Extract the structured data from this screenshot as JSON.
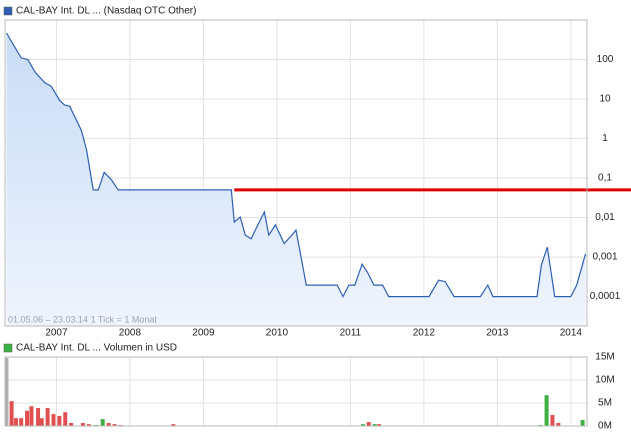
{
  "chart_data": [
    {
      "type": "line",
      "legend": "CAL-BAY Int.     DL ... (Nasdaq OTC Other)",
      "note": "01.05.06 – 23.03.14   1 Tick = 1 Monat",
      "log_scale": true,
      "grid": true,
      "color": "#2f5fb3",
      "xlim": [
        2006.3,
        2014.22
      ],
      "xticks": [
        2007,
        2008,
        2009,
        2010,
        2011,
        2012,
        2013,
        2014
      ],
      "ylim": [
        1.8e-05,
        1000
      ],
      "yticks": [
        100,
        10,
        1,
        {
          "value": 0.1,
          "label": "0,1"
        },
        {
          "value": 0.01,
          "label": "0,01"
        },
        {
          "value": 0.001,
          "label": "0,001"
        },
        {
          "value": 0.0001,
          "label": "0,0001"
        }
      ],
      "reference_line": {
        "value": 0.05,
        "from": 2009.42,
        "color": "#e00000"
      },
      "x": [
        2006.32,
        2006.52,
        2006.61,
        2006.71,
        2006.84,
        2006.93,
        2007.04,
        2007.11,
        2007.18,
        2007.34,
        2007.41,
        2007.5,
        2007.57,
        2007.65,
        2007.75,
        2007.84,
        2009.38,
        2009.42,
        2009.5,
        2009.57,
        2009.65,
        2009.74,
        2009.83,
        2009.89,
        2009.98,
        2010.1,
        2010.19,
        2010.26,
        2010.4,
        2010.82,
        2010.9,
        2010.98,
        2011.06,
        2011.16,
        2011.23,
        2011.32,
        2011.44,
        2011.52,
        2012.07,
        2012.2,
        2012.29,
        2012.41,
        2012.77,
        2012.87,
        2012.94,
        2013.54,
        2013.6,
        2013.68,
        2013.78,
        2014.0,
        2014.08,
        2014.2
      ],
      "values": [
        470,
        110,
        100,
        48,
        26,
        21,
        9.4,
        7.1,
        6.6,
        1.6,
        0.51,
        0.05,
        0.05,
        0.14,
        0.089,
        0.05,
        0.05,
        0.0077,
        0.0103,
        0.0036,
        0.0029,
        0.0065,
        0.0138,
        0.0036,
        0.0065,
        0.0022,
        0.0034,
        0.0048,
        0.000195,
        0.000195,
        0.0001,
        0.000195,
        0.000195,
        0.00066,
        0.00042,
        0.000195,
        0.000195,
        0.0001,
        0.0001,
        0.00026,
        0.00024,
        0.0001,
        0.0001,
        0.000195,
        0.0001,
        0.0001,
        0.00063,
        0.00178,
        0.0001,
        0.0001,
        0.000195,
        0.0012
      ]
    },
    {
      "type": "bar",
      "legend": "CAL-BAY Int.     DL ... Volumen in USD",
      "legend_color": "#3cb043",
      "grid": true,
      "xlim": [
        2006.3,
        2014.22
      ],
      "xticks": [
        2007,
        2008,
        2009,
        2010,
        2011,
        2012,
        2013,
        2014
      ],
      "ylim": [
        0,
        15000000
      ],
      "yticks": [
        {
          "value": 0,
          "label": "0M"
        },
        {
          "value": 5000000,
          "label": "5M"
        },
        {
          "value": 10000000,
          "label": "10M"
        },
        {
          "value": 15000000,
          "label": "15M"
        }
      ],
      "x": [
        2006.32,
        2006.39,
        2006.45,
        2006.52,
        2006.6,
        2006.66,
        2006.75,
        2006.8,
        2006.88,
        2006.96,
        2007.04,
        2007.12,
        2007.2,
        2007.36,
        2007.44,
        2007.54,
        2007.63,
        2007.71,
        2007.79,
        2007.87,
        2008.59,
        2011.17,
        2011.25,
        2011.33,
        2011.39,
        2013.59,
        2013.67,
        2013.75,
        2013.83,
        2014.16
      ],
      "values": [
        14800000,
        5400000,
        1700000,
        1700000,
        3300000,
        4300000,
        3900000,
        1700000,
        3900000,
        2600000,
        2200000,
        3000000,
        650000,
        650000,
        400000,
        200000,
        1500000,
        650000,
        400000,
        200000,
        400000,
        400000,
        850000,
        400000,
        400000,
        200000,
        6700000,
        2400000,
        650000,
        1300000
      ],
      "colors": [
        "#b0b0b0",
        "#e05050",
        "#e05050",
        "#e05050",
        "#e05050",
        "#e05050",
        "#e05050",
        "#e05050",
        "#e05050",
        "#e05050",
        "#e05050",
        "#e05050",
        "#e05050",
        "#e05050",
        "#e05050",
        "#3cb043",
        "#3cb043",
        "#e05050",
        "#e05050",
        "#e05050",
        "#e05050",
        "#3cb043",
        "#e05050",
        "#3cb043",
        "#e05050",
        "#3cb043",
        "#3cb043",
        "#e05050",
        "#e05050",
        "#3cb043"
      ]
    }
  ]
}
